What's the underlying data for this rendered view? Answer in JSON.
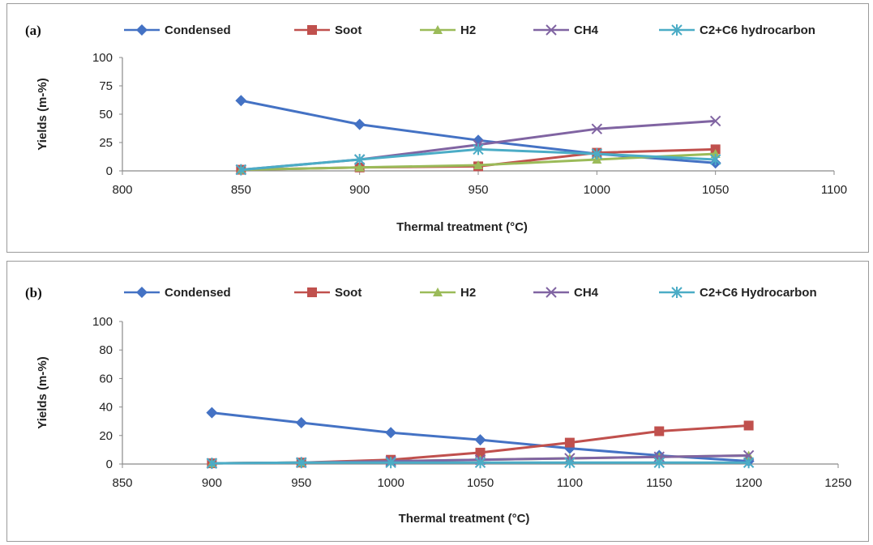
{
  "chart_data": [
    {
      "panel_label": "(a)",
      "type": "line",
      "xlabel": "Thermal treatment (°C)",
      "ylabel": "Yields (m-%)",
      "xlim": [
        800,
        1100
      ],
      "ylim": [
        0,
        100
      ],
      "xticks": [
        800,
        850,
        900,
        950,
        1000,
        1050,
        1100
      ],
      "yticks": [
        0,
        25,
        50,
        75,
        100
      ],
      "legend_position": "top",
      "x": [
        850,
        900,
        950,
        1000,
        1050
      ],
      "series": [
        {
          "name": "Condensed",
          "color": "#4472c4",
          "marker": "diamond",
          "values": [
            62,
            41,
            27,
            15,
            7
          ]
        },
        {
          "name": "Soot",
          "color": "#c0504d",
          "marker": "square",
          "values": [
            1,
            3,
            4,
            16,
            19
          ]
        },
        {
          "name": "H2",
          "color": "#9bbb59",
          "marker": "triangle",
          "values": [
            1,
            3,
            5,
            10,
            15
          ]
        },
        {
          "name": "CH4",
          "color": "#8064a2",
          "marker": "x",
          "values": [
            1,
            10,
            23,
            37,
            44
          ]
        },
        {
          "name": "C2+C6 hydrocarbon",
          "color": "#4bacc6",
          "marker": "star",
          "values": [
            1,
            10,
            19,
            15,
            10
          ]
        }
      ]
    },
    {
      "panel_label": "(b)",
      "type": "line",
      "xlabel": "Thermal treatment (°C)",
      "ylabel": "Yields (m-%)",
      "xlim": [
        850,
        1250
      ],
      "ylim": [
        0,
        100
      ],
      "xticks": [
        850,
        900,
        950,
        1000,
        1050,
        1100,
        1150,
        1200,
        1250
      ],
      "yticks": [
        0,
        20,
        40,
        60,
        80,
        100
      ],
      "legend_position": "top",
      "x": [
        900,
        950,
        1000,
        1050,
        1100,
        1150,
        1200
      ],
      "series": [
        {
          "name": "Condensed",
          "color": "#4472c4",
          "marker": "diamond",
          "values": [
            36,
            29,
            22,
            17,
            11,
            6,
            2
          ]
        },
        {
          "name": "Soot",
          "color": "#c0504d",
          "marker": "square",
          "values": [
            0.5,
            1,
            3,
            8,
            15,
            23,
            27
          ]
        },
        {
          "name": "H2",
          "color": "#9bbb59",
          "marker": "triangle",
          "values": [
            0.5,
            1,
            2,
            3,
            4,
            5,
            6
          ]
        },
        {
          "name": "CH4",
          "color": "#8064a2",
          "marker": "x",
          "values": [
            0.5,
            1,
            2,
            3,
            4,
            5,
            6
          ]
        },
        {
          "name": "C2+C6 Hydrocarbon",
          "color": "#4bacc6",
          "marker": "star",
          "values": [
            0.5,
            1,
            1,
            1,
            1,
            1,
            1
          ]
        }
      ]
    }
  ]
}
